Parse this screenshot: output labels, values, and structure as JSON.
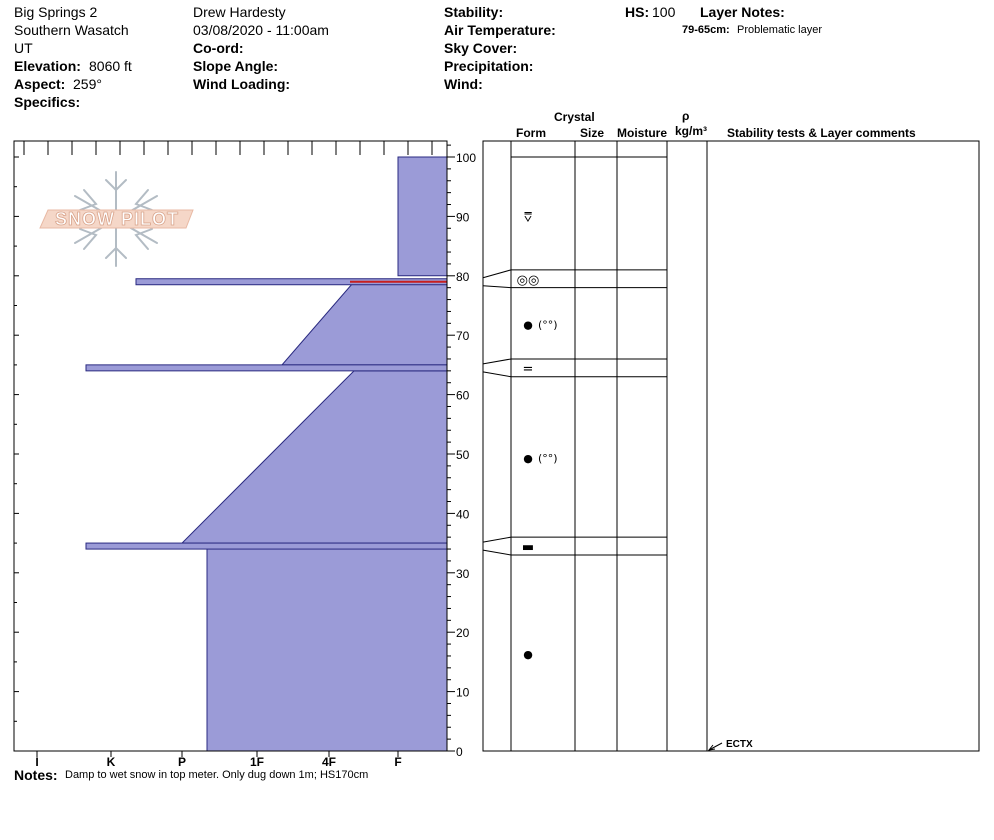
{
  "header": {
    "location": "Big Springs 2",
    "range": "Southern Wasatch",
    "state": "UT",
    "elevation_label": "Elevation:",
    "elevation_value": "8060 ft",
    "aspect_label": "Aspect:",
    "aspect_value": "259°",
    "specifics_label": "Specifics:",
    "observer": "Drew Hardesty",
    "datetime": "03/08/2020 - 11:00am",
    "coord_label": "Co-ord:",
    "slope_label": "Slope Angle:",
    "wind_loading_label": "Wind Loading:",
    "stability_label": "Stability:",
    "air_temp_label": "Air Temperature:",
    "sky_label": "Sky Cover:",
    "precip_label": "Precipitation:",
    "wind_label": "Wind:",
    "hs_label": "HS:",
    "hs_value": "100",
    "layer_notes_label": "Layer Notes:",
    "layer_note_range": "79-65cm:",
    "layer_note_text": "Problematic layer"
  },
  "logo_text": "SNOW PILOT",
  "columns": {
    "crystal": "Crystal",
    "form": "Form",
    "size": "Size",
    "moisture": "Moisture",
    "rho": "ρ",
    "density_unit": "kg/m³",
    "comments": "Stability tests & Layer comments"
  },
  "notes_label": "Notes:",
  "notes_text": "Damp to wet snow in top meter. Only dug down 1m; HS170cm",
  "chart_data": {
    "type": "snow-profile",
    "depth_ticks": [
      0,
      10,
      20,
      30,
      40,
      50,
      60,
      70,
      80,
      90,
      100
    ],
    "ylim": [
      0,
      103
    ],
    "hardness_labels": [
      "I",
      "K",
      "P",
      "1F",
      "4F",
      "F"
    ],
    "hardness_profile": [
      {
        "top": 100,
        "bottom": 80,
        "hardness_top": "F",
        "hardness_bottom": "F"
      },
      {
        "top": 79,
        "bottom": 65,
        "hardness_top": "4F+",
        "hardness_bottom": "1F+"
      },
      {
        "top": 64,
        "bottom": 35,
        "hardness_top": "4F+",
        "hardness_bottom": "P"
      },
      {
        "top": 34,
        "bottom": 0,
        "hardness_top": "P+",
        "hardness_bottom": "P+"
      }
    ],
    "thin_layers": [
      {
        "depth": 79,
        "hardness": "K+"
      },
      {
        "depth": 64.5,
        "hardness": "K-"
      },
      {
        "depth": 34.5,
        "hardness": "K-"
      }
    ],
    "problem_layer_depth": 79,
    "layer_boundaries": [
      100,
      81,
      78,
      66,
      63,
      36,
      33,
      0
    ],
    "grain_forms": [
      {
        "depth": 90,
        "symbol": "⩢",
        "extra": ""
      },
      {
        "depth": 79.5,
        "symbol": "◎◎",
        "extra": ""
      },
      {
        "depth": 72,
        "symbol": "●",
        "extra": "(°°)"
      },
      {
        "depth": 64.5,
        "symbol": "=",
        "extra": ""
      },
      {
        "depth": 49.5,
        "symbol": "●",
        "extra": "(°°)"
      },
      {
        "depth": 34.5,
        "symbol": "▬",
        "extra": ""
      },
      {
        "depth": 16.5,
        "symbol": "●",
        "extra": ""
      }
    ],
    "stability_tests": [
      {
        "depth": 0,
        "label": "ECTX"
      }
    ]
  }
}
